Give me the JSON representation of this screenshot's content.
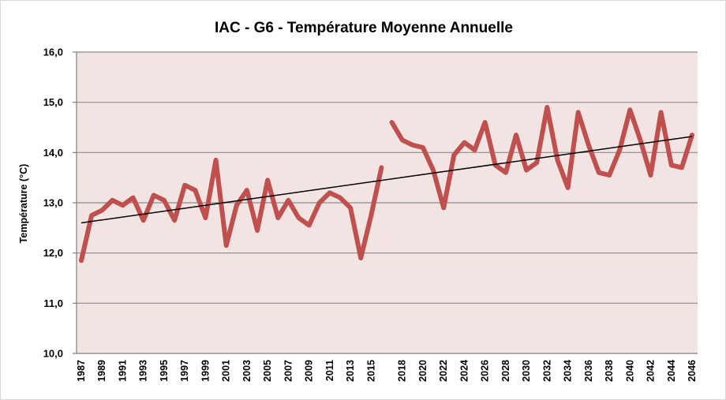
{
  "chart_data": {
    "type": "line",
    "title": "IAC - G6 - Température Moyenne Annuelle",
    "xlabel": "",
    "ylabel": "Température (°C)",
    "ylim": [
      10,
      16
    ],
    "y_ticks": [
      "10,0",
      "11,0",
      "12,0",
      "13,0",
      "14,0",
      "15,0",
      "16,0"
    ],
    "grid": "horizontal",
    "x_tick_labels": [
      "1987",
      "1989",
      "1991",
      "1993",
      "1995",
      "1997",
      "1999",
      "2001",
      "2003",
      "2005",
      "2007",
      "2009",
      "2011",
      "2013",
      "2015",
      "2018",
      "2020",
      "2022",
      "2024",
      "2026",
      "2028",
      "2030",
      "2032",
      "2034",
      "2036",
      "2038",
      "2040",
      "2042",
      "2044",
      "2046"
    ],
    "series": [
      {
        "segments": [
          {
            "x": [
              1987,
              1988,
              1989,
              1990,
              1991,
              1992,
              1993,
              1994,
              1995,
              1996,
              1997,
              1998,
              1999,
              2000,
              2001,
              2002,
              2003,
              2004,
              2005,
              2006,
              2007,
              2008,
              2009,
              2010,
              2011,
              2012,
              2013,
              2014,
              2015,
              2016
            ],
            "y": [
              11.85,
              12.75,
              12.85,
              13.05,
              12.95,
              13.1,
              12.65,
              13.15,
              13.05,
              12.65,
              13.35,
              13.25,
              12.7,
              13.85,
              12.15,
              12.95,
              13.25,
              12.45,
              13.45,
              12.7,
              13.05,
              12.7,
              12.55,
              13.0,
              13.2,
              13.1,
              12.9,
              11.9,
              12.75,
              13.7
            ]
          },
          {
            "x": [
              2017,
              2018,
              2019,
              2020,
              2021,
              2022,
              2023,
              2024,
              2025,
              2026,
              2027,
              2028,
              2029,
              2030,
              2031,
              2032,
              2033,
              2034,
              2035,
              2036,
              2037,
              2038,
              2039,
              2040,
              2041,
              2042,
              2043,
              2044,
              2045,
              2046
            ],
            "y": [
              14.6,
              14.25,
              14.15,
              14.1,
              13.65,
              12.9,
              13.95,
              14.2,
              14.05,
              14.6,
              13.75,
              13.6,
              14.35,
              13.65,
              13.8,
              14.9,
              13.85,
              13.3,
              14.8,
              14.15,
              13.6,
              13.55,
              14.05,
              14.85,
              14.25,
              13.55,
              14.8,
              13.75,
              13.7,
              14.35
            ]
          }
        ]
      }
    ],
    "trendline": {
      "x": [
        1987,
        2046
      ],
      "y": [
        12.6,
        14.32
      ]
    },
    "colors": {
      "series": "#c0504d",
      "trendline": "#000000",
      "plot_background": "#f3e4e4",
      "gridline": "#8c8c8c"
    }
  }
}
